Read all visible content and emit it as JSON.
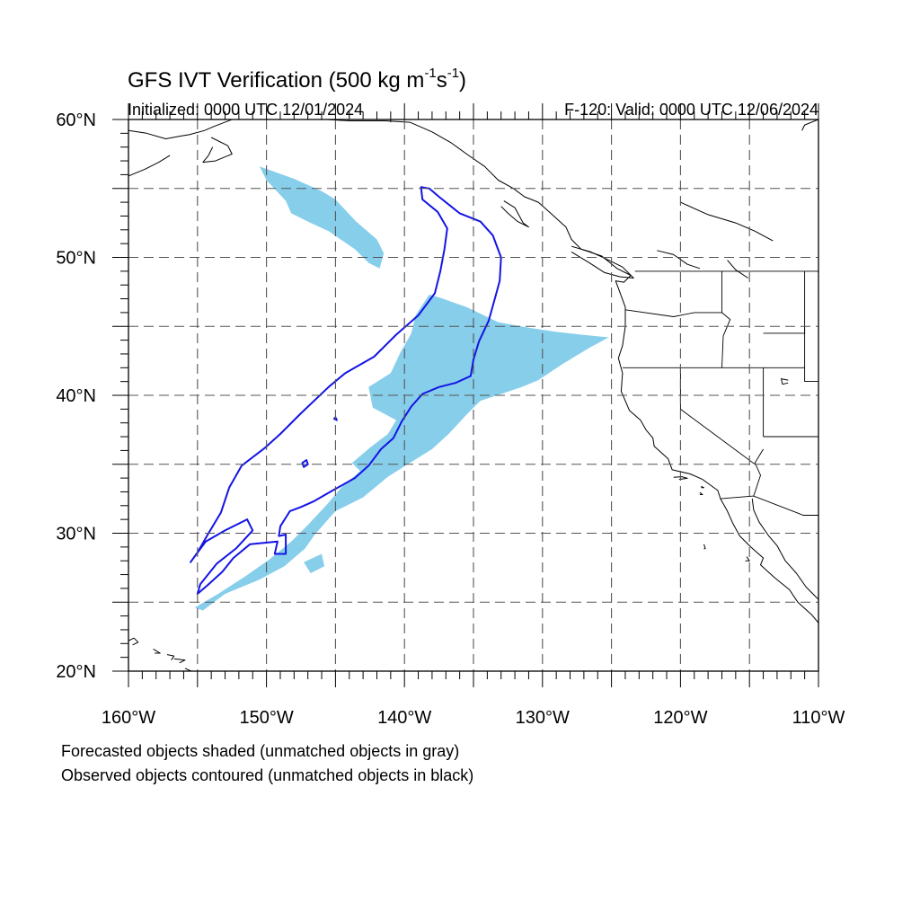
{
  "header": {
    "title_main": "GFS IVT Verification (500 kg m",
    "title_sup1": "-1",
    "title_mid": "s",
    "title_sup2": "-1",
    "title_end": ")",
    "initialized": "Initialized: 0000 UTC 12/01/2024",
    "valid": "F-120: Valid: 0000 UTC 12/06/2024"
  },
  "map": {
    "lon_range": [
      -160,
      -110
    ],
    "lat_range": [
      20,
      60
    ],
    "lat_labels": [
      {
        "lat": 60,
        "text": "60°N"
      },
      {
        "lat": 50,
        "text": "50°N"
      },
      {
        "lat": 40,
        "text": "40°N"
      },
      {
        "lat": 30,
        "text": "30°N"
      },
      {
        "lat": 20,
        "text": "20°N"
      }
    ],
    "lon_labels": [
      {
        "lon": -160,
        "text": "160°W"
      },
      {
        "lon": -150,
        "text": "150°W"
      },
      {
        "lon": -140,
        "text": "140°W"
      },
      {
        "lon": -130,
        "text": "130°W"
      },
      {
        "lon": -120,
        "text": "120°W"
      },
      {
        "lon": -110,
        "text": "110°W"
      }
    ],
    "grid_spacing_deg": 5,
    "colors": {
      "forecast_fill": "#87ceeb",
      "observed_contour": "#1414e6",
      "coast": "#000000",
      "grid": "#555555"
    },
    "forecast_objects": [
      [
        [
          -150.5,
          56.6
        ],
        [
          -148,
          55.7
        ],
        [
          -146,
          54.8
        ],
        [
          -145,
          54.2
        ],
        [
          -143.5,
          52.6
        ],
        [
          -142,
          51.3
        ],
        [
          -141.5,
          50.3
        ],
        [
          -141.8,
          49.2
        ],
        [
          -142.6,
          49.6
        ],
        [
          -143.6,
          50.6
        ],
        [
          -145.5,
          51.9
        ],
        [
          -147,
          52.6
        ],
        [
          -148.2,
          53.2
        ],
        [
          -148.6,
          54.1
        ],
        [
          -150,
          55.6
        ]
      ],
      [
        [
          -138.2,
          47.3
        ],
        [
          -137.5,
          47.1
        ],
        [
          -135.5,
          46.4
        ],
        [
          -133.2,
          45.3
        ],
        [
          -131,
          44.9
        ],
        [
          -129,
          44.6
        ],
        [
          -127.2,
          44.4
        ],
        [
          -125.2,
          44.2
        ],
        [
          -126.5,
          43.5
        ],
        [
          -128.5,
          42.3
        ],
        [
          -130.3,
          41.1
        ],
        [
          -131.5,
          40.6
        ],
        [
          -133,
          40.1
        ],
        [
          -134.5,
          39.6
        ],
        [
          -135.5,
          38.6
        ],
        [
          -136.8,
          37.2
        ],
        [
          -138,
          36.1
        ],
        [
          -139.6,
          35.1
        ],
        [
          -141.2,
          34.1
        ],
        [
          -143,
          32.6
        ],
        [
          -145,
          31.6
        ],
        [
          -146.5,
          29.9
        ],
        [
          -147.2,
          28.9
        ],
        [
          -148.7,
          27.6
        ],
        [
          -150.6,
          26.6
        ],
        [
          -153,
          25.6
        ],
        [
          -154.6,
          24.4
        ],
        [
          -155.2,
          24.6
        ],
        [
          -153.5,
          25.6
        ],
        [
          -151.5,
          26.9
        ],
        [
          -149.8,
          28.1
        ],
        [
          -148.2,
          29.4
        ],
        [
          -147,
          30.6
        ],
        [
          -145.6,
          32.1
        ],
        [
          -144.5,
          33.4
        ],
        [
          -143.2,
          34.5
        ],
        [
          -143.8,
          35.1
        ],
        [
          -142.5,
          36.2
        ],
        [
          -141.2,
          37.2
        ],
        [
          -140.6,
          38.2
        ],
        [
          -142.3,
          39.1
        ],
        [
          -142.6,
          40.6
        ],
        [
          -141,
          41.6
        ],
        [
          -140.3,
          43.1
        ],
        [
          -139.5,
          44.5
        ],
        [
          -139.2,
          45.8
        ]
      ],
      [
        [
          -147.3,
          27.9
        ],
        [
          -146,
          28.5
        ],
        [
          -145.8,
          27.6
        ],
        [
          -146.8,
          27.1
        ]
      ]
    ],
    "observed_objects": [
      [
        [
          -138.8,
          55.1
        ],
        [
          -138.2,
          55.0
        ],
        [
          -137.5,
          54.4
        ],
        [
          -136,
          53.2
        ],
        [
          -134.5,
          52.6
        ],
        [
          -133.6,
          51.6
        ],
        [
          -133.0,
          50.0
        ],
        [
          -133.1,
          48.3
        ],
        [
          -133.4,
          47.2
        ],
        [
          -133.9,
          45.4
        ],
        [
          -134.6,
          43.9
        ],
        [
          -135.0,
          42.6
        ],
        [
          -135.2,
          41.4
        ],
        [
          -136.3,
          40.9
        ],
        [
          -137.5,
          40.6
        ],
        [
          -138.7,
          40.1
        ],
        [
          -139.5,
          39.2
        ],
        [
          -140.2,
          38.1
        ],
        [
          -140.8,
          36.9
        ],
        [
          -141.7,
          36.1
        ],
        [
          -142.6,
          34.9
        ],
        [
          -143.6,
          34.0
        ],
        [
          -145.2,
          33.1
        ],
        [
          -146.6,
          32.3
        ],
        [
          -147.5,
          31.9
        ],
        [
          -148.3,
          31.6
        ],
        [
          -149.0,
          30.5
        ],
        [
          -149.1,
          29.8
        ],
        [
          -148.6,
          29.9
        ],
        [
          -148.6,
          28.5
        ],
        [
          -149.4,
          28.5
        ],
        [
          -149.2,
          29.4
        ],
        [
          -151.2,
          29.2
        ],
        [
          -152.4,
          28.2
        ],
        [
          -153.2,
          27.2
        ],
        [
          -154.3,
          26.2
        ],
        [
          -155.0,
          25.6
        ],
        [
          -154.8,
          26.3
        ],
        [
          -153.6,
          27.8
        ],
        [
          -152.2,
          28.9
        ],
        [
          -151.0,
          30.2
        ],
        [
          -151.4,
          31.0
        ],
        [
          -153.0,
          30.2
        ],
        [
          -154.4,
          29.4
        ],
        [
          -155.5,
          27.9
        ],
        [
          -155.0,
          28.6
        ],
        [
          -154.2,
          30.0
        ],
        [
          -153.3,
          31.5
        ],
        [
          -152.7,
          33.3
        ],
        [
          -151.8,
          34.9
        ],
        [
          -150.1,
          36.2
        ],
        [
          -149.0,
          37.2
        ],
        [
          -147.5,
          38.7
        ],
        [
          -145.5,
          40.6
        ],
        [
          -144.3,
          41.6
        ],
        [
          -142.2,
          42.8
        ],
        [
          -140.6,
          44.4
        ],
        [
          -139.0,
          45.8
        ],
        [
          -137.8,
          47.4
        ],
        [
          -137.4,
          49.0
        ],
        [
          -137.1,
          50.6
        ],
        [
          -136.9,
          52.1
        ],
        [
          -137.6,
          53.3
        ],
        [
          -138.7,
          54.2
        ]
      ],
      [
        [
          -147.4,
          35.1
        ],
        [
          -147.1,
          35.3
        ],
        [
          -147.0,
          35.0
        ],
        [
          -147.3,
          34.8
        ]
      ],
      [
        [
          -145.1,
          38.3
        ],
        [
          -145.0,
          38.4
        ],
        [
          -144.9,
          38.2
        ]
      ]
    ],
    "coastlines": [
      [
        [
          -160,
          59.2
        ],
        [
          -158.7,
          59.0
        ],
        [
          -157.3,
          58.6
        ],
        [
          -156.2,
          58.8
        ],
        [
          -155.6,
          58.9
        ],
        [
          -154.5,
          59.2
        ],
        [
          -153.8,
          59.5
        ],
        [
          -152.5,
          60
        ]
      ],
      [
        [
          -154.0,
          58.7
        ],
        [
          -152.8,
          58.1
        ],
        [
          -152.5,
          57.5
        ],
        [
          -153.7,
          57.0
        ],
        [
          -154.6,
          56.9
        ],
        [
          -154.2,
          57.4
        ],
        [
          -153.9,
          58.0
        ]
      ],
      [
        [
          -160,
          55.9
        ],
        [
          -158.8,
          56.4
        ],
        [
          -157.8,
          56.9
        ],
        [
          -157.0,
          57.4
        ]
      ],
      [
        [
          -145.6,
          60
        ],
        [
          -144.0,
          59.9
        ],
        [
          -141.4,
          59.9
        ],
        [
          -139.6,
          59.8
        ],
        [
          -138.0,
          59.1
        ],
        [
          -136.6,
          58.3
        ],
        [
          -135.5,
          57.5
        ],
        [
          -134.2,
          56.6
        ],
        [
          -133.2,
          55.6
        ],
        [
          -132.1,
          55.0
        ],
        [
          -131.3,
          54.4
        ],
        [
          -130.3,
          54.0
        ],
        [
          -129.4,
          53.2
        ],
        [
          -128.3,
          52.2
        ],
        [
          -127.9,
          51.3
        ],
        [
          -127.2,
          50.6
        ],
        [
          -125.7,
          50.1
        ],
        [
          -124.6,
          49.2
        ],
        [
          -123.6,
          48.7
        ],
        [
          -124.1,
          48.2
        ],
        [
          -124.7,
          48.3
        ],
        [
          -124.4,
          47.5
        ],
        [
          -124.0,
          46.4
        ],
        [
          -124.0,
          45.0
        ],
        [
          -124.2,
          43.6
        ],
        [
          -124.5,
          42.7
        ],
        [
          -124.2,
          41.6
        ],
        [
          -124.3,
          40.3
        ],
        [
          -123.7,
          38.9
        ],
        [
          -122.9,
          38.2
        ],
        [
          -122.5,
          37.5
        ],
        [
          -122.0,
          36.9
        ],
        [
          -121.9,
          36.3
        ],
        [
          -120.9,
          35.4
        ],
        [
          -120.6,
          34.6
        ],
        [
          -119.3,
          34.3
        ],
        [
          -118.4,
          33.9
        ],
        [
          -117.3,
          33.1
        ],
        [
          -117.1,
          32.5
        ],
        [
          -116.6,
          31.6
        ],
        [
          -116.2,
          30.7
        ],
        [
          -115.7,
          29.8
        ],
        [
          -114.9,
          29.0
        ],
        [
          -114.0,
          28.2
        ],
        [
          -114.2,
          27.7
        ],
        [
          -113.2,
          26.8
        ],
        [
          -112.1,
          25.9
        ],
        [
          -111.5,
          25.0
        ],
        [
          -110.5,
          24.1
        ],
        [
          -110,
          23.5
        ]
      ],
      [
        [
          -114.8,
          32.5
        ],
        [
          -114.7,
          31.7
        ],
        [
          -114.3,
          30.8
        ],
        [
          -113.6,
          29.8
        ],
        [
          -113.0,
          29.1
        ],
        [
          -112.4,
          28.0
        ],
        [
          -111.6,
          27.1
        ],
        [
          -110.9,
          26.1
        ],
        [
          -110.3,
          25.5
        ],
        [
          -110,
          25.2
        ]
      ],
      [
        [
          -132.8,
          54.1
        ],
        [
          -132.0,
          53.6
        ],
        [
          -131.4,
          52.5
        ],
        [
          -131.0,
          52.2
        ],
        [
          -131.8,
          52.6
        ],
        [
          -132.5,
          53.2
        ],
        [
          -133.0,
          53.7
        ]
      ],
      [
        [
          -127.9,
          50.8
        ],
        [
          -126.5,
          50.4
        ],
        [
          -125.2,
          49.8
        ],
        [
          -124.2,
          49.3
        ],
        [
          -123.4,
          48.5
        ],
        [
          -124.4,
          48.6
        ],
        [
          -125.5,
          48.9
        ],
        [
          -126.6,
          49.6
        ],
        [
          -127.9,
          50.4
        ]
      ],
      [
        [
          -160,
          22.2
        ],
        [
          -159.6,
          22.4
        ],
        [
          -159.3,
          22.1
        ],
        [
          -159.7,
          21.9
        ]
      ],
      [
        [
          -158.2,
          21.6
        ],
        [
          -157.7,
          21.3
        ],
        [
          -158.1,
          21.3
        ]
      ],
      [
        [
          -157.2,
          21.2
        ],
        [
          -156.7,
          21.1
        ],
        [
          -156.9,
          20.8
        ]
      ],
      [
        [
          -156.7,
          20.9
        ],
        [
          -155.9,
          20.8
        ],
        [
          -156.3,
          20.6
        ]
      ],
      [
        [
          -155.9,
          20.2
        ],
        [
          -155.0,
          19.8
        ],
        [
          -154.8,
          19.5
        ],
        [
          -155.3,
          19.1
        ],
        [
          -155.9,
          19.0
        ]
      ],
      [
        [
          -120.5,
          34.05
        ],
        [
          -119.9,
          34.1
        ],
        [
          -119.5,
          33.98
        ],
        [
          -120.1,
          33.9
        ]
      ],
      [
        [
          -118.5,
          33.4
        ],
        [
          -118.3,
          33.3
        ],
        [
          -118.5,
          33.3
        ]
      ],
      [
        [
          -118.6,
          32.95
        ],
        [
          -118.4,
          32.8
        ],
        [
          -118.6,
          32.8
        ]
      ],
      [
        [
          -118.3,
          29.2
        ],
        [
          -118.2,
          28.9
        ],
        [
          -118.3,
          28.85
        ]
      ],
      [
        [
          -115.2,
          28.3
        ],
        [
          -115.0,
          28.0
        ],
        [
          -115.3,
          28.0
        ]
      ],
      [
        [
          -112.2,
          41.1
        ],
        [
          -112.7,
          41.2
        ],
        [
          -112.6,
          40.8
        ],
        [
          -112.2,
          40.9
        ]
      ],
      [
        [
          -110,
          60
        ],
        [
          -111.0,
          59.6
        ],
        [
          -111.2,
          59.2
        ]
      ],
      [
        [
          -120.0,
          54.0
        ],
        [
          -118.0,
          53.1
        ],
        [
          -116.0,
          52.5
        ],
        [
          -114.6,
          51.9
        ],
        [
          -113.3,
          51.2
        ]
      ],
      [
        [
          -121.7,
          50.5
        ],
        [
          -120.5,
          50.2
        ],
        [
          -119.5,
          49.5
        ],
        [
          -118.6,
          49.2
        ]
      ],
      [
        [
          -116.6,
          49.8
        ],
        [
          -116.0,
          49.1
        ],
        [
          -115.1,
          48.5
        ]
      ]
    ],
    "borders": [
      [
        [
          -141,
          60
        ],
        [
          -141,
          59.8
        ]
      ],
      [
        [
          -123.3,
          49.0
        ],
        [
          -110,
          49.0
        ]
      ],
      [
        [
          -124.0,
          46.2
        ],
        [
          -120.5,
          45.7
        ],
        [
          -119.0,
          46.0
        ],
        [
          -117.0,
          46.0
        ]
      ],
      [
        [
          -117.0,
          49
        ],
        [
          -117.0,
          46.0
        ],
        [
          -116.4,
          45.5
        ],
        [
          -116.9,
          44.3
        ],
        [
          -117.0,
          42
        ]
      ],
      [
        [
          -124.2,
          42
        ],
        [
          -111.0,
          42
        ]
      ],
      [
        [
          -111.0,
          49
        ],
        [
          -111.0,
          44.5
        ],
        [
          -114,
          44.5
        ]
      ],
      [
        [
          -111.0,
          45.0
        ],
        [
          -111.0,
          41.0
        ],
        [
          -110,
          41.0
        ]
      ],
      [
        [
          -120.0,
          42
        ],
        [
          -120.0,
          39.0
        ],
        [
          -114.6,
          35.0
        ]
      ],
      [
        [
          -114.0,
          42
        ],
        [
          -114.0,
          37.0
        ]
      ],
      [
        [
          -114.0,
          37.0
        ],
        [
          -110,
          37.0
        ]
      ],
      [
        [
          -114.0,
          36.1
        ],
        [
          -114.6,
          35.1
        ],
        [
          -114.2,
          34.2
        ],
        [
          -114.7,
          32.7
        ]
      ],
      [
        [
          -117.1,
          32.5
        ],
        [
          -114.7,
          32.7
        ],
        [
          -111.1,
          31.3
        ],
        [
          -110,
          31.3
        ]
      ]
    ]
  },
  "legend": {
    "line1": "Forecasted objects shaded (unmatched objects in gray)",
    "line2": "Observed objects contoured (unmatched objects in black)"
  }
}
